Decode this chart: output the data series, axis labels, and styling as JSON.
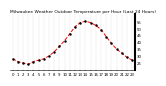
{
  "title": "Milwaukee Weather Outdoor Temperature per Hour (Last 24 Hours)",
  "hours": [
    0,
    1,
    2,
    3,
    4,
    5,
    6,
    7,
    8,
    9,
    10,
    11,
    12,
    13,
    14,
    15,
    16,
    17,
    18,
    19,
    20,
    21,
    22,
    23
  ],
  "temps": [
    28,
    26,
    25,
    24,
    26,
    27,
    28,
    30,
    33,
    37,
    41,
    46,
    51,
    54,
    55,
    54,
    52,
    49,
    44,
    39,
    35,
    32,
    29,
    27
  ],
  "line_color": "#ff0000",
  "marker_color": "#000000",
  "bg_color": "#ffffff",
  "grid_color": "#888888",
  "title_color": "#000000",
  "ylim": [
    20,
    60
  ],
  "yticks": [
    25,
    30,
    35,
    40,
    45,
    50,
    55
  ],
  "title_fontsize": 3.2,
  "tick_fontsize": 2.8,
  "linewidth": 0.7,
  "markersize": 1.5
}
